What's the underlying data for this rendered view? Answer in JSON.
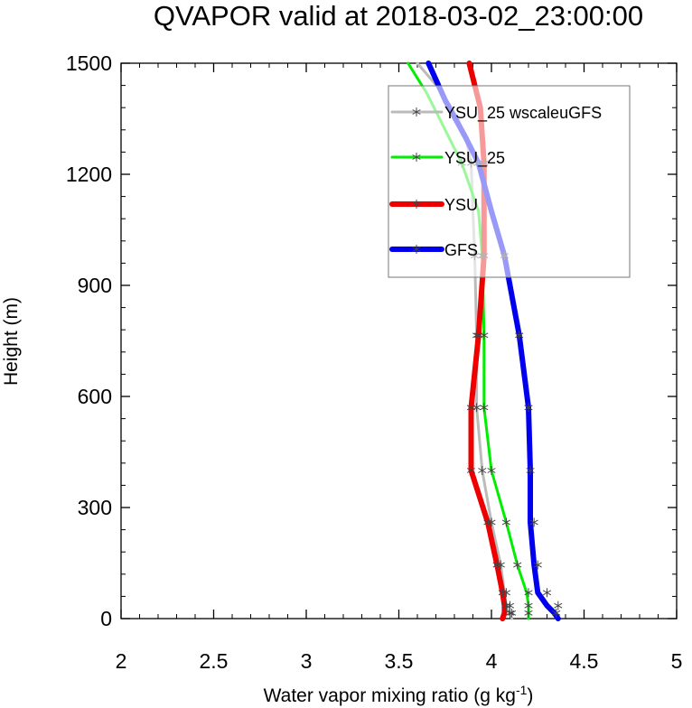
{
  "chart_data": {
    "type": "line",
    "title": "QVAPOR valid at 2018-03-02_23:00:00",
    "xlabel": "Water vapor mixing ratio (g kg",
    "xlabel_unit_sup": "-1",
    "xlabel_close": ")",
    "ylabel": "Height (m)",
    "xlim": [
      2,
      5
    ],
    "ylim": [
      0,
      1500
    ],
    "x_ticks": [
      2,
      2.5,
      3,
      3.5,
      4,
      4.5,
      5
    ],
    "x_tick_labels": [
      "2",
      "2.5",
      "3",
      "3.5",
      "4",
      "4.5",
      "5"
    ],
    "y_ticks": [
      0,
      300,
      600,
      900,
      1200,
      1500
    ],
    "y_tick_labels": [
      "0",
      "300",
      "600",
      "900",
      "1200",
      "1500"
    ],
    "grid": false,
    "legend_position": "top-right",
    "series": [
      {
        "name": "YSU_25 wscaleuGFS",
        "color": "#bbbbbb",
        "line_width": 3,
        "x": [
          4.11,
          4.1,
          4.08,
          4.07,
          4.05,
          4.0,
          3.95,
          3.92,
          3.92,
          3.91,
          3.9,
          3.89,
          3.86,
          3.82,
          3.72,
          3.6
        ],
        "y": [
          0,
          15,
          35,
          70,
          145,
          260,
          400,
          570,
          765,
          980,
          1100,
          1230,
          1300,
          1350,
          1430,
          1500
        ]
      },
      {
        "name": "YSU_25",
        "color": "#00ee00",
        "line_width": 3,
        "x": [
          4.2,
          4.2,
          4.2,
          4.19,
          4.14,
          4.08,
          4.0,
          3.96,
          3.96,
          3.95,
          3.93,
          3.84,
          3.74,
          3.65,
          3.55
        ],
        "y": [
          0,
          15,
          35,
          70,
          145,
          260,
          400,
          570,
          765,
          980,
          1100,
          1230,
          1330,
          1420,
          1500
        ]
      },
      {
        "name": "YSU",
        "color": "#ee0000",
        "line_width": 6,
        "x": [
          4.06,
          4.07,
          4.07,
          4.06,
          4.03,
          3.98,
          3.89,
          3.89,
          3.93,
          3.96,
          3.96,
          3.96,
          3.94,
          3.88
        ],
        "y": [
          0,
          15,
          35,
          70,
          145,
          260,
          400,
          570,
          765,
          980,
          1100,
          1230,
          1380,
          1500
        ]
      },
      {
        "name": "GFS",
        "color": "#0000ee",
        "line_width": 6,
        "x": [
          4.36,
          4.34,
          4.3,
          4.25,
          4.23,
          4.21,
          4.21,
          4.2,
          4.15,
          4.07,
          4.0,
          3.93,
          3.86,
          3.75,
          3.66
        ],
        "y": [
          0,
          15,
          35,
          70,
          145,
          260,
          400,
          570,
          765,
          980,
          1100,
          1230,
          1300,
          1400,
          1500
        ]
      }
    ],
    "markers": {
      "symbol": "asterisk",
      "color": "#444444",
      "points": [
        {
          "y": 15,
          "x": [
            4.1,
            4.11,
            4.2,
            4.35
          ]
        },
        {
          "y": 35,
          "x": [
            4.08,
            4.1,
            4.2,
            4.36
          ]
        },
        {
          "y": 70,
          "x": [
            4.06,
            4.08,
            4.2,
            4.3
          ]
        },
        {
          "y": 145,
          "x": [
            4.03,
            4.05,
            4.14,
            4.25
          ]
        },
        {
          "y": 260,
          "x": [
            3.98,
            4.0,
            4.08,
            4.23
          ]
        },
        {
          "y": 400,
          "x": [
            3.89,
            3.95,
            4.0,
            4.21
          ]
        },
        {
          "y": 570,
          "x": [
            3.89,
            3.92,
            3.96,
            4.2
          ]
        },
        {
          "y": 765,
          "x": [
            3.93,
            3.92,
            3.96,
            4.15
          ]
        },
        {
          "y": 980,
          "x": [
            3.96,
            3.91,
            3.95,
            4.07
          ]
        },
        {
          "y": 1230,
          "x": [
            3.96,
            3.89,
            3.84,
            3.93
          ]
        }
      ]
    }
  }
}
